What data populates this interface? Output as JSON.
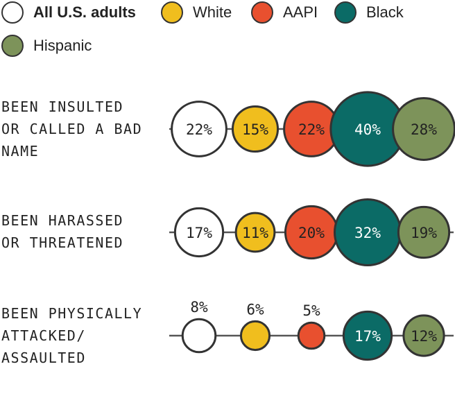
{
  "legend": [
    {
      "label": "All U.S. adults",
      "color": "#ffffff",
      "bold": true
    },
    {
      "label": "White",
      "color": "#f0be1e",
      "bold": false
    },
    {
      "label": "AAPI",
      "color": "#e8502f",
      "bold": false
    },
    {
      "label": "Black",
      "color": "#0b6b66",
      "bold": false
    },
    {
      "label": "Hispanic",
      "color": "#7d935a",
      "bold": false
    }
  ],
  "chart_data": {
    "type": "bubble",
    "unit": "%",
    "series": [
      {
        "name": "All U.S. adults",
        "color": "#ffffff",
        "values": [
          22,
          17,
          8
        ]
      },
      {
        "name": "White",
        "color": "#f0be1e",
        "values": [
          15,
          11,
          6
        ]
      },
      {
        "name": "AAPI",
        "color": "#e8502f",
        "values": [
          22,
          20,
          5
        ]
      },
      {
        "name": "Black",
        "color": "#0b6b66",
        "values": [
          40,
          32,
          17
        ]
      },
      {
        "name": "Hispanic",
        "color": "#7d935a",
        "values": [
          28,
          19,
          12
        ]
      }
    ],
    "rows": [
      {
        "lines": [
          "BEEN INSULTED",
          "OR CALLED A BAD",
          "NAME"
        ]
      },
      {
        "lines": [
          "BEEN HARASSED",
          "OR THREATENED"
        ]
      },
      {
        "lines": [
          "BEEN PHYSICALLY",
          "ATTACKED/",
          "ASSAULTED"
        ]
      }
    ],
    "labels": [
      [
        "22%",
        "15%",
        "22%",
        "40%",
        "28%"
      ],
      [
        "17%",
        "11%",
        "20%",
        "32%",
        "19%"
      ],
      [
        "8%",
        "6%",
        "5%",
        "17%",
        "12%"
      ]
    ]
  }
}
